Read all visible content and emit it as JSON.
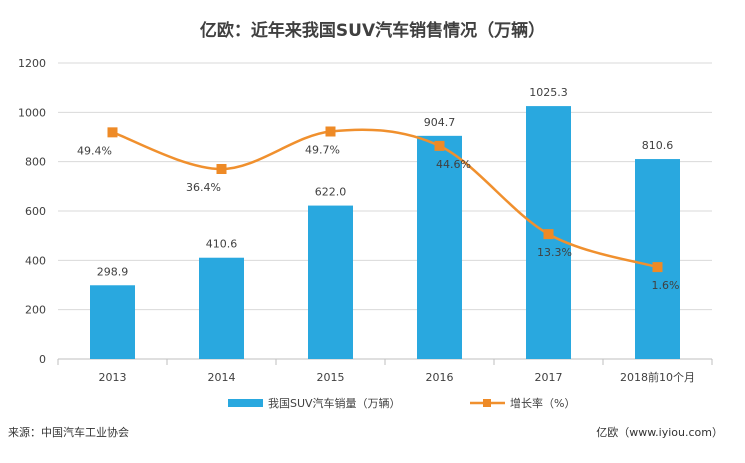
{
  "title": "亿欧：近年来我国SUV汽车销售情况（万辆）",
  "source_note": "来源：中国汽车工业协会",
  "brand_note": "亿欧（www.iyiou.com）",
  "colors": {
    "bar": "#29a8df",
    "line": "#f0902e",
    "marker": "#ee8a26"
  },
  "chart_data": {
    "type": "bar",
    "categories": [
      "2013",
      "2014",
      "2015",
      "2016",
      "2017",
      "2018前10个月"
    ],
    "series": [
      {
        "name": "我国SUV汽车销量（万辆）",
        "type": "bar",
        "axis": "left",
        "values": [
          298.9,
          410.6,
          622.0,
          904.7,
          1025.3,
          810.6
        ],
        "labels": [
          "298.9",
          "410.6",
          "622.0",
          "904.7",
          "1025.3",
          "810.6"
        ]
      },
      {
        "name": "增长率（%）",
        "type": "line",
        "axis": "right",
        "smooth": true,
        "values": [
          49.4,
          36.4,
          49.7,
          44.6,
          13.3,
          1.6
        ],
        "labels": [
          "49.4%",
          "36.4%",
          "49.7%",
          "44.6%",
          "13.3%",
          "1.6%"
        ]
      }
    ],
    "ylim": [
      0,
      1200
    ],
    "yticks": [
      "0",
      "200",
      "400",
      "600",
      "800",
      "1000",
      "1200"
    ],
    "grid": true,
    "legend_position": "bottom-center"
  }
}
